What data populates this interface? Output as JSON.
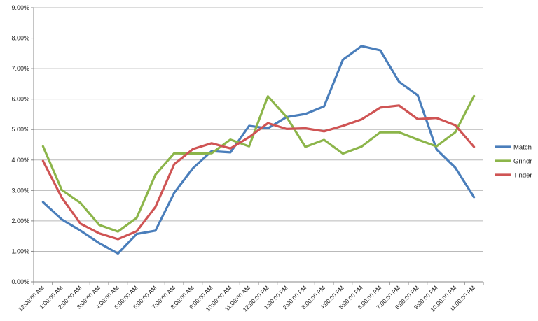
{
  "chart_data": {
    "type": "line",
    "title": "",
    "xlabel": "",
    "ylabel": "",
    "ylim": [
      0,
      9
    ],
    "y_ticks": [
      "0.00%",
      "1.00%",
      "2.00%",
      "3.00%",
      "4.00%",
      "5.00%",
      "6.00%",
      "7.00%",
      "8.00%",
      "9.00%"
    ],
    "categories": [
      "12:00:00 AM",
      "1:00:00 AM",
      "2:00:00 AM",
      "3:00:00 AM",
      "4:00:00 AM",
      "5:00:00 AM",
      "6:00:00 AM",
      "7:00:00 AM",
      "8:00:00 AM",
      "9:00:00 AM",
      "10:00:00 AM",
      "11:00:00 AM",
      "12:00:00 PM",
      "1:00:00 PM",
      "2:00:00 PM",
      "3:00:00 PM",
      "4:00:00 PM",
      "5:00:00 PM",
      "6:00:00 PM",
      "7:00:00 PM",
      "8:00:00 PM",
      "9:00:00 PM",
      "10:00:00 PM",
      "11:00:00 PM"
    ],
    "grid": true,
    "legend_position": "right",
    "series": [
      {
        "name": "Match",
        "color": "#4a7ebb",
        "values": [
          2.62,
          2.05,
          1.68,
          1.27,
          0.93,
          1.57,
          1.68,
          2.92,
          3.73,
          4.29,
          4.25,
          5.12,
          5.04,
          5.41,
          5.51,
          5.76,
          7.29,
          7.74,
          7.6,
          6.57,
          6.12,
          4.35,
          3.75,
          2.78
        ]
      },
      {
        "name": "Grindr",
        "color": "#8cb54a",
        "values": [
          4.45,
          3.02,
          2.59,
          1.87,
          1.65,
          2.1,
          3.52,
          4.22,
          4.21,
          4.22,
          4.67,
          4.45,
          6.09,
          5.41,
          4.43,
          4.66,
          4.21,
          4.44,
          4.91,
          4.91,
          4.67,
          4.45,
          4.91,
          6.1
        ]
      },
      {
        "name": "Tinder",
        "color": "#cf5454",
        "values": [
          3.97,
          2.77,
          1.91,
          1.59,
          1.4,
          1.66,
          2.46,
          3.86,
          4.36,
          4.55,
          4.38,
          4.75,
          5.21,
          5.02,
          5.04,
          4.94,
          5.12,
          5.33,
          5.72,
          5.79,
          5.34,
          5.38,
          5.14,
          4.43
        ]
      }
    ]
  }
}
